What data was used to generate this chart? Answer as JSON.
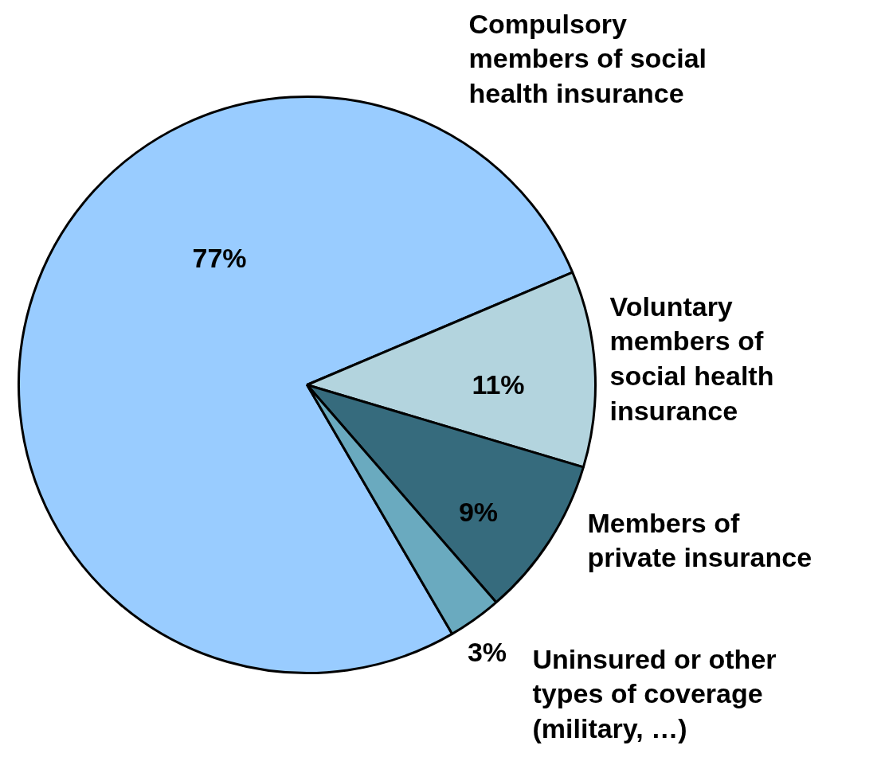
{
  "chart_data": {
    "type": "pie",
    "categories": [
      "Compulsory members of social health insurance",
      "Voluntary members of social health insurance",
      "Members of private insurance",
      "Uninsured or other types of coverage (military, …)"
    ],
    "values": [
      77,
      11,
      9,
      3
    ],
    "colors": [
      "#99ccff",
      "#b3d4de",
      "#366b7d",
      "#6aaabf"
    ],
    "value_labels": [
      "77%",
      "11%",
      "9%",
      "3%"
    ]
  }
}
